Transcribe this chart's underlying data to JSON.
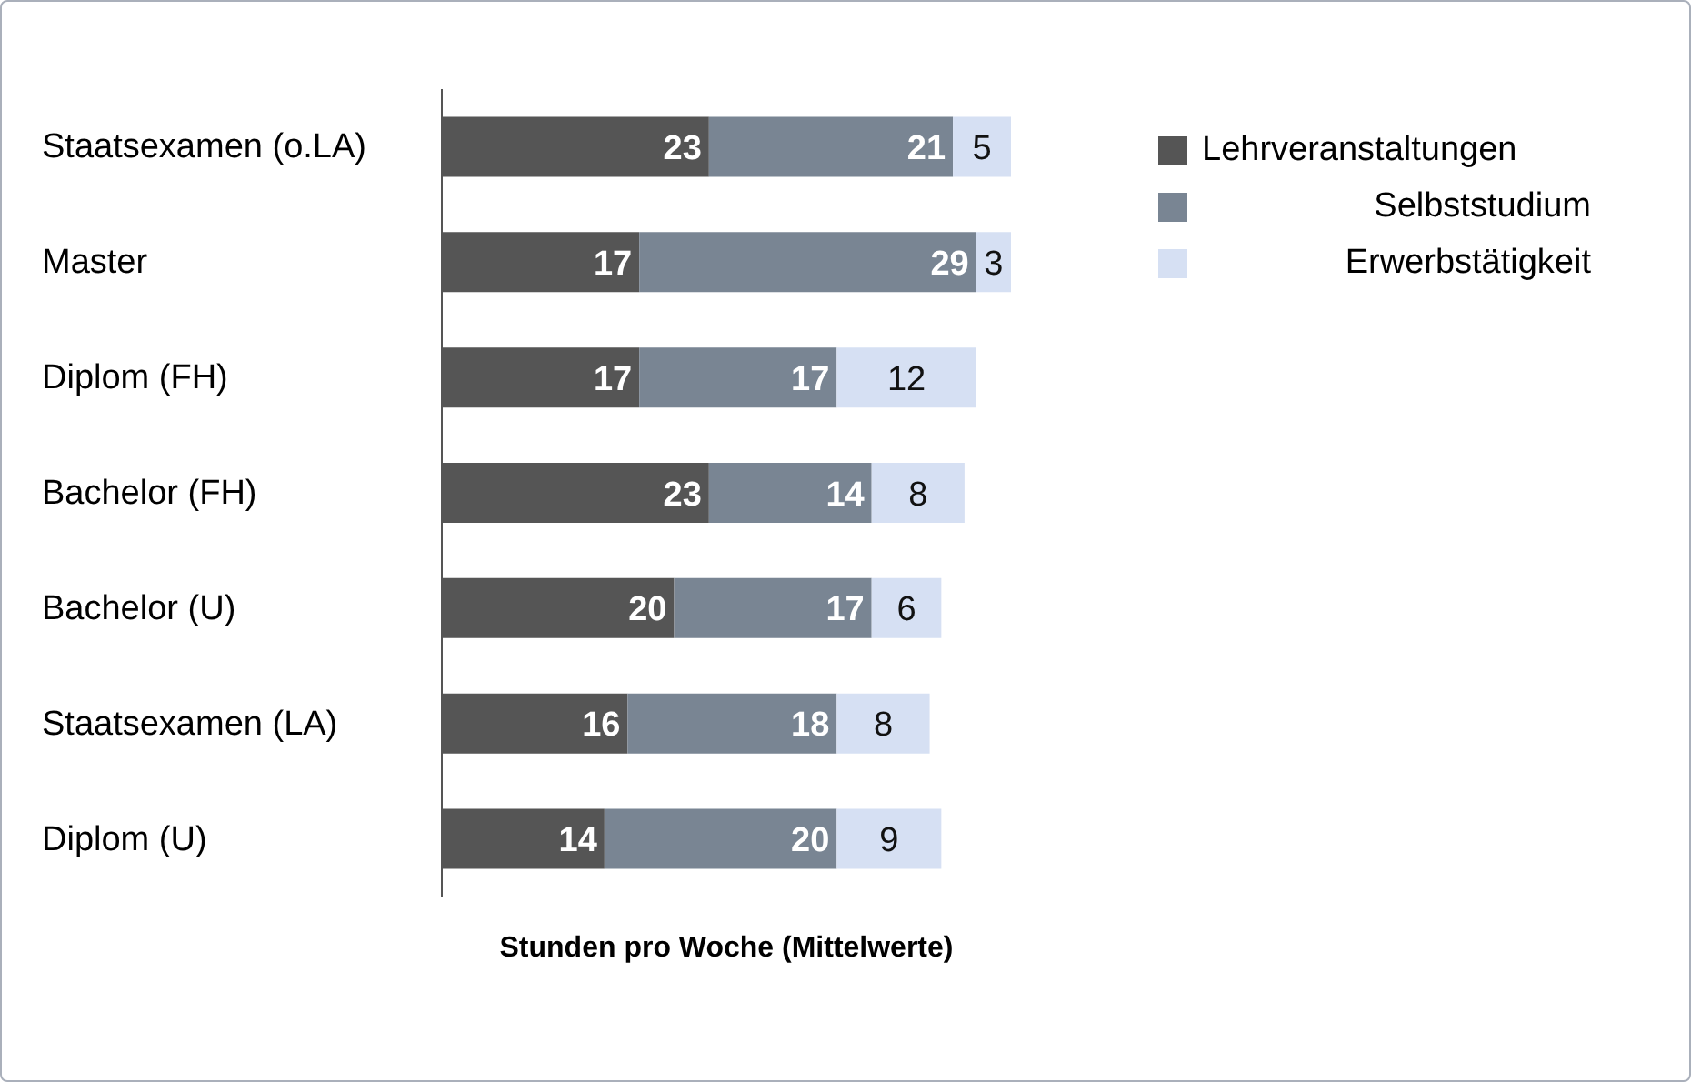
{
  "chart_data": {
    "type": "bar",
    "orientation": "horizontal",
    "stacked": true,
    "data_labels": true,
    "legend": "top right",
    "xlabel": "Stunden pro Woche (Mittelwerte)",
    "categories": [
      "Staatsexamen (o.LA)",
      "Master",
      "Diplom (FH)",
      "Bachelor (FH)",
      "Bachelor (U)",
      "Staatsexamen (LA)",
      "Diplom (U)"
    ],
    "series": [
      {
        "name": "Lehrveranstaltungen",
        "color": "#555555",
        "values": [
          23,
          17,
          17,
          23,
          20,
          16,
          14
        ]
      },
      {
        "name": "Selbststudium",
        "color": "#798593",
        "values": [
          21,
          29,
          17,
          14,
          17,
          18,
          20
        ]
      },
      {
        "name": "Erwerbstätigkeit",
        "color": "#d6e0f3",
        "values": [
          5,
          3,
          12,
          8,
          6,
          8,
          9
        ]
      }
    ]
  }
}
